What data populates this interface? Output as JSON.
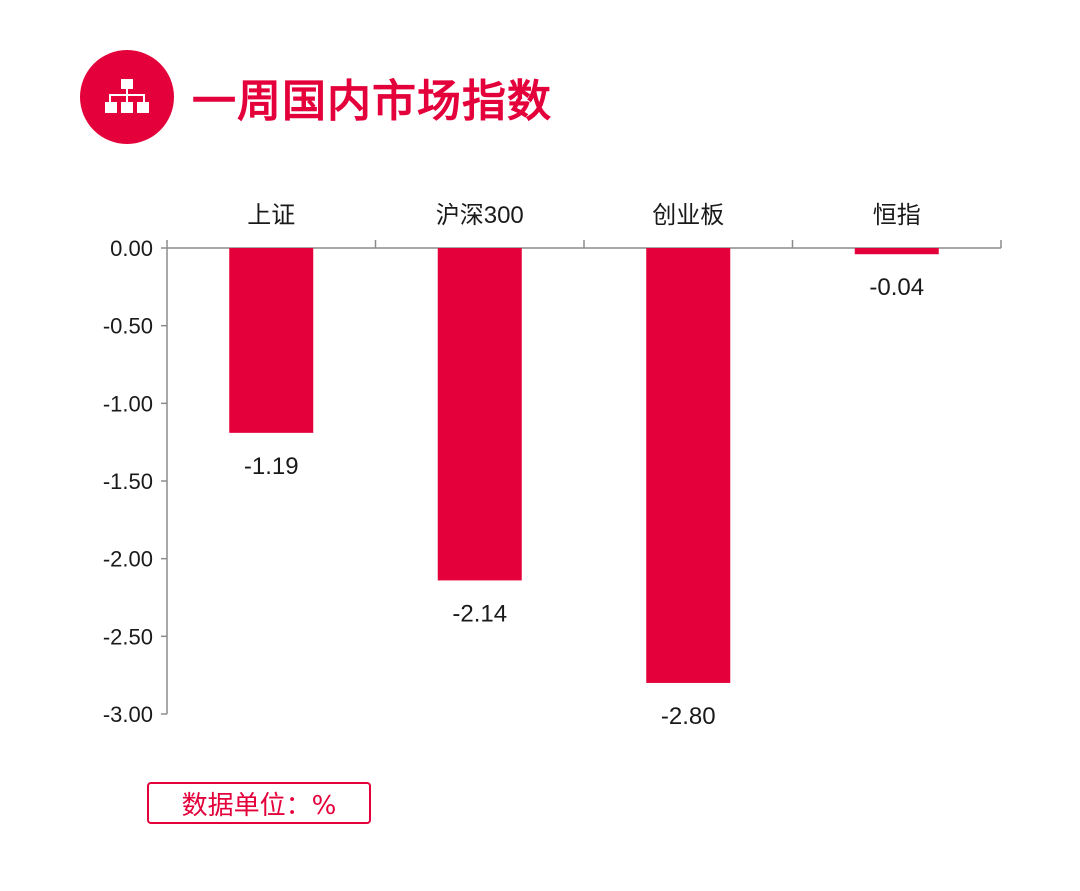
{
  "header": {
    "title": "一周国内市场指数",
    "icon": "sitemap-icon",
    "accent_color": "#e4003a"
  },
  "unit_label": "数据单位：%",
  "chart_data": {
    "type": "bar",
    "categories": [
      "上证",
      "沪深300",
      "创业板",
      "恒指"
    ],
    "values": [
      -1.19,
      -2.14,
      -2.8,
      -0.04
    ],
    "data_labels": [
      "-1.19",
      "-2.14",
      "-2.80",
      "-0.04"
    ],
    "ylim": [
      -3.0,
      0.0
    ],
    "yticks": [
      0.0,
      -0.5,
      -1.0,
      -1.5,
      -2.0,
      -2.5,
      -3.0
    ],
    "ytick_labels": [
      "0.00",
      "-0.50",
      "-1.00",
      "-1.50",
      "-2.00",
      "-2.50",
      "-3.00"
    ],
    "category_axis_position": "top",
    "bar_color": "#e4003a",
    "grid": false,
    "legend": "none"
  }
}
